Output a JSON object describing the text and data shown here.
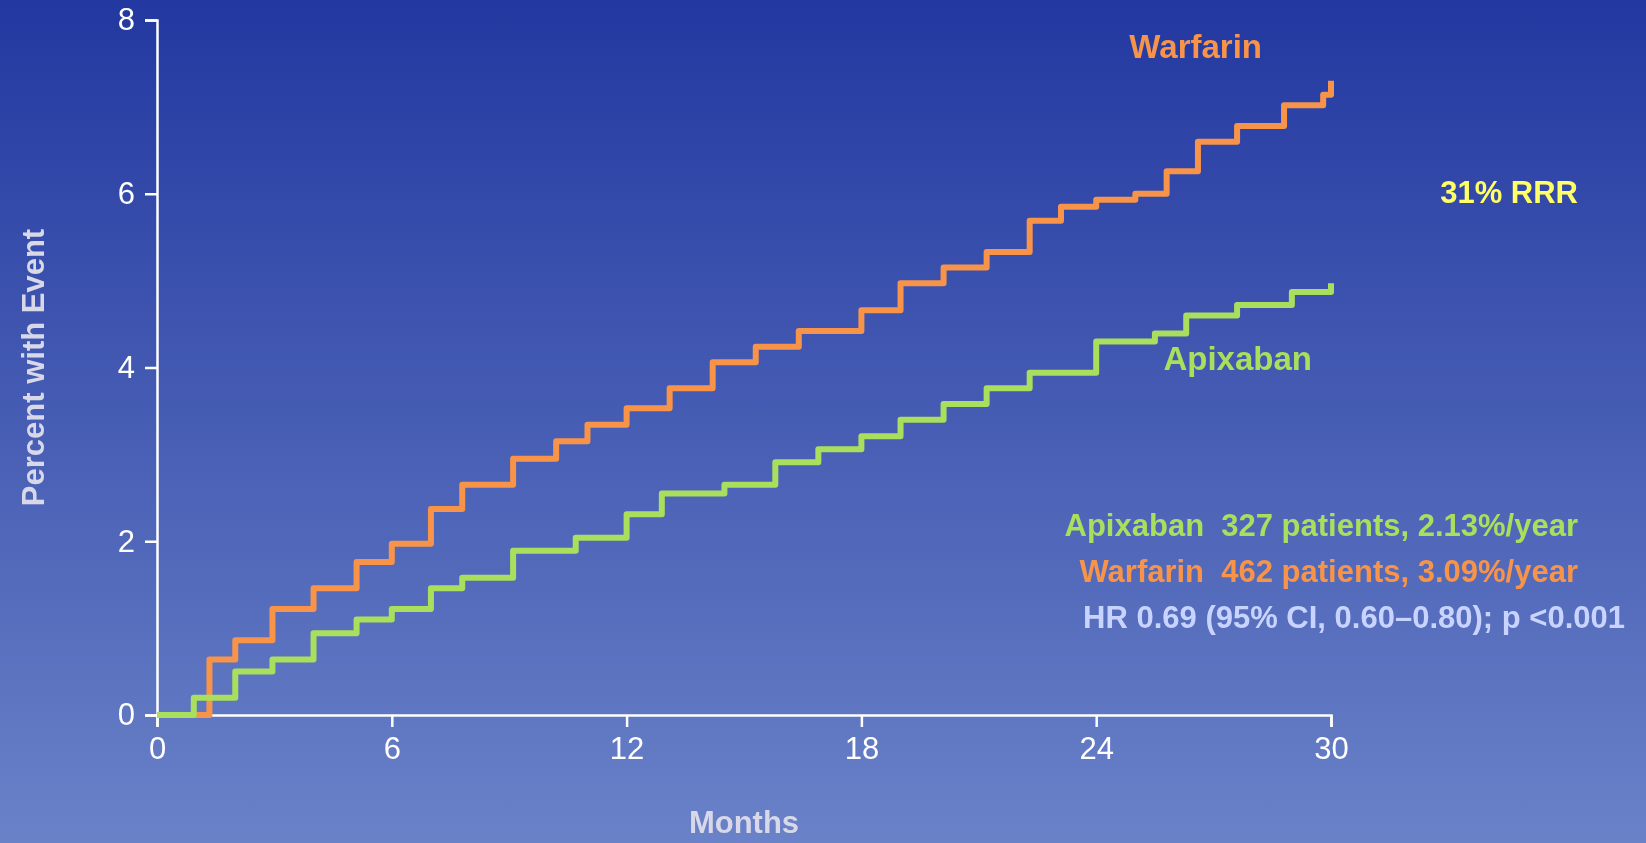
{
  "chart_data": {
    "type": "step",
    "xlabel": "Months",
    "ylabel": "Percent with Event",
    "xlim": [
      0,
      30
    ],
    "xticks": [
      0,
      6,
      12,
      18,
      24,
      30
    ],
    "ylim": [
      0,
      8
    ],
    "yticks": [
      0,
      2,
      4,
      6,
      8
    ],
    "grid": false,
    "legend": false,
    "series": [
      {
        "name": "Warfarin",
        "color": "#f7944a",
        "x": [
          0,
          1.34,
          2,
          2.95,
          4,
          5.1,
          6,
          7,
          7.8,
          9.1,
          10.2,
          11,
          12,
          13.1,
          14.2,
          15.3,
          16.4,
          18,
          19,
          20.1,
          21.2,
          22.3,
          23.1,
          24,
          25,
          25.8,
          26.6,
          27.6,
          28.8,
          29.8,
          30
        ],
        "values": [
          0,
          0.64,
          0.86,
          1.22,
          1.46,
          1.76,
          1.97,
          2.37,
          2.65,
          2.95,
          3.15,
          3.34,
          3.53,
          3.76,
          4.06,
          4.24,
          4.42,
          4.66,
          4.97,
          5.15,
          5.33,
          5.69,
          5.85,
          5.93,
          6.0,
          6.26,
          6.6,
          6.78,
          7.02,
          7.14,
          7.3
        ]
      },
      {
        "name": "Apixaban",
        "color": "#a9df5c",
        "x": [
          0,
          0.94,
          2,
          2.95,
          4,
          5.1,
          6,
          7,
          7.8,
          9.1,
          10.7,
          12,
          12.9,
          14.5,
          15.8,
          16.9,
          18,
          19,
          20.1,
          21.2,
          22.3,
          24,
          25.5,
          26.3,
          27.6,
          29,
          30
        ],
        "values": [
          0,
          0.2,
          0.5,
          0.64,
          0.94,
          1.1,
          1.22,
          1.46,
          1.58,
          1.89,
          2.04,
          2.31,
          2.55,
          2.65,
          2.91,
          3.06,
          3.21,
          3.4,
          3.58,
          3.76,
          3.94,
          4.3,
          4.39,
          4.6,
          4.72,
          4.87,
          4.97
        ]
      }
    ],
    "annotations": [
      "31% RRR",
      "Apixaban  327 patients, 2.13%/year",
      "Warfarin  462 patients, 3.09%/year",
      "HR 0.69 (95% CI, 0.60–0.80); p <0.001"
    ]
  }
}
